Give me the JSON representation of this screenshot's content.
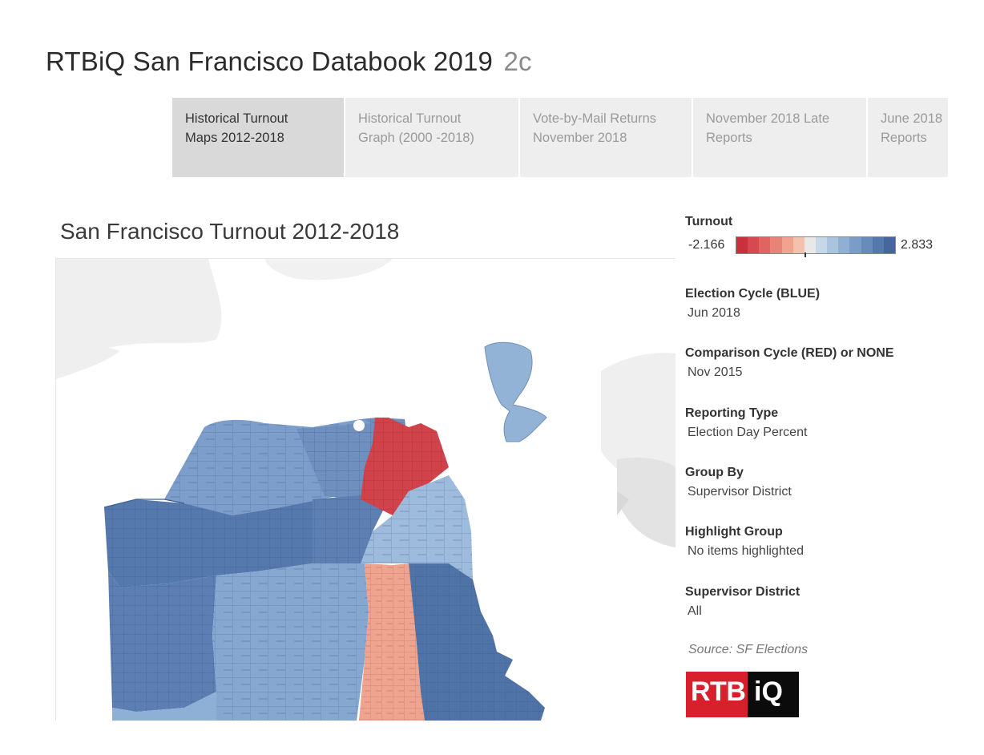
{
  "header": {
    "title": "RTBiQ San Francisco Databook 2019",
    "subtitle": "2c"
  },
  "tabs": [
    {
      "line1": "Historical Turnout",
      "line2": "Maps 2012-2018",
      "active": true
    },
    {
      "line1": "Historical Turnout",
      "line2": "Graph (2000 -2018)",
      "active": false
    },
    {
      "line1": "Vote-by-Mail Returns",
      "line2": "November 2018",
      "active": false
    },
    {
      "line1": "November 2018 Late",
      "line2": "Reports",
      "active": false
    },
    {
      "line1": "June 2018",
      "line2": "Reports",
      "active": false
    }
  ],
  "map": {
    "title": "San Francisco Turnout 2012-2018"
  },
  "legend": {
    "title": "Turnout",
    "min": "-2.166",
    "max": "2.833",
    "colors": [
      "#c8303b",
      "#d64a4f",
      "#e06462",
      "#e88377",
      "#f0a48f",
      "#f3c2ad",
      "#e8e8e8",
      "#c7d7e6",
      "#a9c4de",
      "#8fb0d2",
      "#7a9dc7",
      "#678bbb",
      "#5679ad",
      "#46679c"
    ]
  },
  "filters": [
    {
      "label": "Election Cycle (BLUE)",
      "value": "Jun 2018"
    },
    {
      "label": "Comparison Cycle (RED) or NONE",
      "value": "Nov 2015"
    },
    {
      "label": "Reporting Type",
      "value": "Election Day Percent"
    },
    {
      "label": "Group By",
      "value": "Supervisor District"
    },
    {
      "label": "Highlight Group",
      "value": "No items highlighted"
    },
    {
      "label": "Supervisor District",
      "value": "All"
    }
  ],
  "source": "Source: SF Elections",
  "logo": {
    "part1": "RTB",
    "part2": "iQ"
  }
}
